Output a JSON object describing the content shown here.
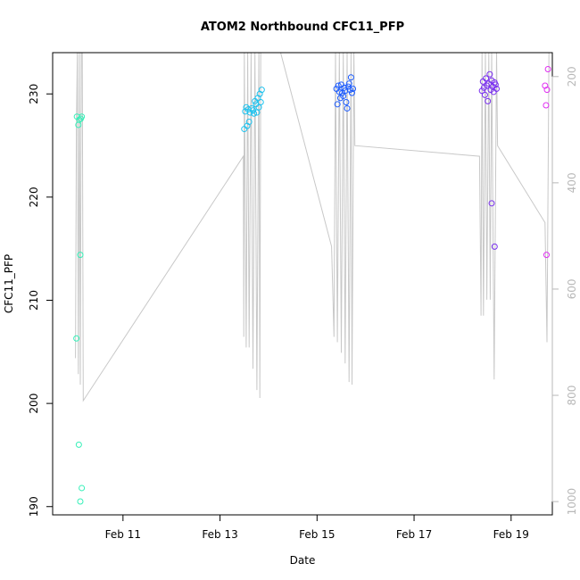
{
  "chart_data": {
    "type": "scatter",
    "title": "ATOM2 Northbound CFC11_PFP",
    "xlabel": "Date",
    "ylabel": "CFC11_PFP",
    "xlim": [
      9.55,
      19.85
    ],
    "ylim": [
      189.2,
      234.0
    ],
    "y2lim": [
      1025,
      155
    ],
    "x_ticks": [
      {
        "value": 11,
        "label": "Feb 11"
      },
      {
        "value": 13,
        "label": "Feb 13"
      },
      {
        "value": 15,
        "label": "Feb 15"
      },
      {
        "value": 17,
        "label": "Feb 17"
      },
      {
        "value": 19,
        "label": "Feb 19"
      }
    ],
    "y_ticks": [
      {
        "value": 190,
        "label": "190"
      },
      {
        "value": 200,
        "label": "200"
      },
      {
        "value": 210,
        "label": "210"
      },
      {
        "value": 220,
        "label": "220"
      },
      {
        "value": 230,
        "label": "230"
      }
    ],
    "y2_ticks": [
      {
        "value": 200,
        "label": "200"
      },
      {
        "value": 400,
        "label": "400"
      },
      {
        "value": 600,
        "label": "600"
      },
      {
        "value": 800,
        "label": "800"
      },
      {
        "value": 1000,
        "label": "1000"
      }
    ],
    "grid": false,
    "colors": {
      "axis": "#000000",
      "pressure_line": "#c8c8c8",
      "right_axis": "#b8b8b8"
    },
    "points": [
      {
        "x": 10.05,
        "y": 227.8,
        "color": "#35f0b8"
      },
      {
        "x": 10.08,
        "y": 227.0,
        "color": "#35f0b8"
      },
      {
        "x": 10.1,
        "y": 227.5,
        "color": "#35f0b8"
      },
      {
        "x": 10.13,
        "y": 227.6,
        "color": "#35f0b8"
      },
      {
        "x": 10.15,
        "y": 227.8,
        "color": "#35f0b8"
      },
      {
        "x": 10.04,
        "y": 206.3,
        "color": "#35f0b8"
      },
      {
        "x": 10.12,
        "y": 214.4,
        "color": "#35f0b8"
      },
      {
        "x": 10.09,
        "y": 196.0,
        "color": "#35f0b8"
      },
      {
        "x": 10.15,
        "y": 191.8,
        "color": "#35f0b8"
      },
      {
        "x": 10.12,
        "y": 190.5,
        "color": "#35f0b8"
      },
      {
        "x": 13.5,
        "y": 226.6,
        "color": "#1ec2ee"
      },
      {
        "x": 13.52,
        "y": 228.3,
        "color": "#1ec2ee"
      },
      {
        "x": 13.54,
        "y": 228.7,
        "color": "#1ec2ee"
      },
      {
        "x": 13.56,
        "y": 226.9,
        "color": "#1ec2ee"
      },
      {
        "x": 13.58,
        "y": 228.5,
        "color": "#1ec2ee"
      },
      {
        "x": 13.6,
        "y": 227.3,
        "color": "#1ec2ee"
      },
      {
        "x": 13.62,
        "y": 228.2,
        "color": "#1ec2ee"
      },
      {
        "x": 13.65,
        "y": 228.6,
        "color": "#1ec2ee"
      },
      {
        "x": 13.68,
        "y": 228.4,
        "color": "#1ec2ee"
      },
      {
        "x": 13.7,
        "y": 228.1,
        "color": "#1ec2ee"
      },
      {
        "x": 13.72,
        "y": 229.3,
        "color": "#1ec2ee"
      },
      {
        "x": 13.74,
        "y": 229.0,
        "color": "#1ec2ee"
      },
      {
        "x": 13.76,
        "y": 228.2,
        "color": "#1ec2ee"
      },
      {
        "x": 13.78,
        "y": 229.6,
        "color": "#1ec2ee"
      },
      {
        "x": 13.8,
        "y": 228.7,
        "color": "#1ec2ee"
      },
      {
        "x": 13.82,
        "y": 230.0,
        "color": "#1ec2ee"
      },
      {
        "x": 13.84,
        "y": 229.2,
        "color": "#1ec2ee"
      },
      {
        "x": 13.86,
        "y": 230.4,
        "color": "#1ec2ee"
      },
      {
        "x": 15.4,
        "y": 230.5,
        "color": "#1d5cff"
      },
      {
        "x": 15.42,
        "y": 229.0,
        "color": "#1d5cff"
      },
      {
        "x": 15.44,
        "y": 230.8,
        "color": "#1d5cff"
      },
      {
        "x": 15.46,
        "y": 230.2,
        "color": "#1d5cff"
      },
      {
        "x": 15.48,
        "y": 229.6,
        "color": "#1d5cff"
      },
      {
        "x": 15.5,
        "y": 230.9,
        "color": "#1d5cff"
      },
      {
        "x": 15.52,
        "y": 230.1,
        "color": "#1d5cff"
      },
      {
        "x": 15.54,
        "y": 229.8,
        "color": "#1d5cff"
      },
      {
        "x": 15.56,
        "y": 230.6,
        "color": "#1d5cff"
      },
      {
        "x": 15.58,
        "y": 230.3,
        "color": "#1d5cff"
      },
      {
        "x": 15.6,
        "y": 229.2,
        "color": "#1d5cff"
      },
      {
        "x": 15.62,
        "y": 228.6,
        "color": "#1d5cff"
      },
      {
        "x": 15.64,
        "y": 230.7,
        "color": "#1d5cff"
      },
      {
        "x": 15.66,
        "y": 231.0,
        "color": "#1d5cff"
      },
      {
        "x": 15.68,
        "y": 230.4,
        "color": "#1d5cff"
      },
      {
        "x": 15.7,
        "y": 231.6,
        "color": "#1d5cff"
      },
      {
        "x": 15.72,
        "y": 230.1,
        "color": "#1d5cff"
      },
      {
        "x": 15.74,
        "y": 230.5,
        "color": "#1d5cff"
      },
      {
        "x": 18.4,
        "y": 230.3,
        "color": "#7a2ff0"
      },
      {
        "x": 18.42,
        "y": 231.2,
        "color": "#7a2ff0"
      },
      {
        "x": 18.44,
        "y": 230.6,
        "color": "#7a2ff0"
      },
      {
        "x": 18.46,
        "y": 229.9,
        "color": "#7a2ff0"
      },
      {
        "x": 18.48,
        "y": 231.5,
        "color": "#7a2ff0"
      },
      {
        "x": 18.5,
        "y": 230.8,
        "color": "#7a2ff0"
      },
      {
        "x": 18.52,
        "y": 229.3,
        "color": "#7a2ff0"
      },
      {
        "x": 18.54,
        "y": 231.0,
        "color": "#7a2ff0"
      },
      {
        "x": 18.56,
        "y": 231.9,
        "color": "#7a2ff0"
      },
      {
        "x": 18.58,
        "y": 230.4,
        "color": "#7a2ff0"
      },
      {
        "x": 18.6,
        "y": 231.3,
        "color": "#7a2ff0"
      },
      {
        "x": 18.62,
        "y": 230.7,
        "color": "#7a2ff0"
      },
      {
        "x": 18.64,
        "y": 230.2,
        "color": "#7a2ff0"
      },
      {
        "x": 18.66,
        "y": 231.1,
        "color": "#7a2ff0"
      },
      {
        "x": 18.68,
        "y": 230.9,
        "color": "#7a2ff0"
      },
      {
        "x": 18.7,
        "y": 230.5,
        "color": "#7a2ff0"
      },
      {
        "x": 18.6,
        "y": 219.4,
        "color": "#7a2ff0"
      },
      {
        "x": 18.66,
        "y": 215.2,
        "color": "#7a2ff0"
      },
      {
        "x": 19.7,
        "y": 230.8,
        "color": "#e02ff2"
      },
      {
        "x": 19.74,
        "y": 230.4,
        "color": "#e02ff2"
      },
      {
        "x": 19.76,
        "y": 232.4,
        "color": "#e02ff2"
      },
      {
        "x": 19.72,
        "y": 228.9,
        "color": "#e02ff2"
      },
      {
        "x": 19.73,
        "y": 214.4,
        "color": "#e02ff2"
      }
    ],
    "pressure_series": [
      [
        10.02,
        730
      ],
      [
        10.04,
        300
      ],
      [
        10.06,
        155
      ],
      [
        10.08,
        760
      ],
      [
        10.1,
        155
      ],
      [
        10.12,
        780
      ],
      [
        10.14,
        155
      ],
      [
        10.16,
        155
      ],
      [
        10.18,
        810
      ],
      [
        13.48,
        350
      ],
      [
        13.49,
        690
      ],
      [
        13.5,
        155
      ],
      [
        13.54,
        710
      ],
      [
        13.57,
        155
      ],
      [
        13.6,
        710
      ],
      [
        13.64,
        155
      ],
      [
        13.68,
        750
      ],
      [
        13.72,
        155
      ],
      [
        13.76,
        790
      ],
      [
        13.8,
        155
      ],
      [
        13.82,
        805
      ],
      [
        13.84,
        155
      ],
      [
        14.25,
        155
      ],
      [
        15.3,
        520
      ],
      [
        15.35,
        690
      ],
      [
        15.38,
        155
      ],
      [
        15.42,
        700
      ],
      [
        15.46,
        155
      ],
      [
        15.5,
        720
      ],
      [
        15.54,
        155
      ],
      [
        15.58,
        740
      ],
      [
        15.62,
        155
      ],
      [
        15.66,
        775
      ],
      [
        15.7,
        155
      ],
      [
        15.72,
        780
      ],
      [
        15.76,
        155
      ],
      [
        15.78,
        330
      ],
      [
        18.35,
        350
      ],
      [
        18.38,
        650
      ],
      [
        18.4,
        155
      ],
      [
        18.43,
        650
      ],
      [
        18.47,
        155
      ],
      [
        18.5,
        620
      ],
      [
        18.54,
        155
      ],
      [
        18.57,
        620
      ],
      [
        18.6,
        155
      ],
      [
        18.65,
        770
      ],
      [
        18.7,
        155
      ],
      [
        18.72,
        330
      ],
      [
        19.7,
        475
      ],
      [
        19.74,
        700
      ],
      [
        19.78,
        155
      ]
    ]
  }
}
